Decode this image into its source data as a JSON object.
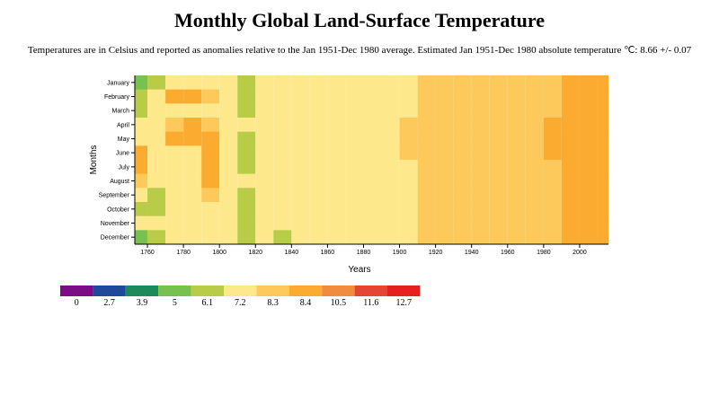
{
  "title": "Monthly Global Land-Surface Temperature",
  "subtitle": "Temperatures are in Celsius and reported as anomalies relative to the Jan 1951-Dec 1980 average. Estimated Jan 1951-Dec 1980 absolute temperature ℃: 8.66 +/- 0.07",
  "chart_data": {
    "type": "heatmap",
    "xlabel": "Years",
    "ylabel": "Months",
    "xlim": [
      1753,
      2015
    ],
    "x_ticks": [
      "1760",
      "1780",
      "1800",
      "1820",
      "1840",
      "1860",
      "1880",
      "1900",
      "1920",
      "1940",
      "1960",
      "1980",
      "2000"
    ],
    "months": [
      "January",
      "February",
      "March",
      "April",
      "May",
      "June",
      "July",
      "August",
      "September",
      "October",
      "November",
      "December"
    ],
    "decades": [
      1750,
      1760,
      1770,
      1780,
      1790,
      1800,
      1810,
      1820,
      1830,
      1840,
      1850,
      1860,
      1870,
      1880,
      1890,
      1900,
      1910,
      1920,
      1930,
      1940,
      1950,
      1960,
      1970,
      1980,
      1990,
      2000,
      2010
    ],
    "values_by_month_decade_approx": [
      [
        6.0,
        7.0,
        8.0,
        7.6,
        8.2,
        7.9,
        6.8,
        7.5,
        7.2,
        7.5,
        7.8,
        7.7,
        7.9,
        7.6,
        7.9,
        8.2,
        8.3,
        8.35,
        8.36,
        8.37,
        8.35,
        8.34,
        8.36,
        8.38,
        8.6,
        8.9,
        9.0
      ],
      [
        6.5,
        7.3,
        8.5,
        8.6,
        8.3,
        8.0,
        6.9,
        7.6,
        7.3,
        7.6,
        7.7,
        7.7,
        7.8,
        7.7,
        7.8,
        8.2,
        8.3,
        8.35,
        8.37,
        8.36,
        8.35,
        8.35,
        8.36,
        8.38,
        8.6,
        9.0,
        9.1
      ],
      [
        7.0,
        7.5,
        8.0,
        8.0,
        8.2,
        7.9,
        7.0,
        7.6,
        7.4,
        7.6,
        7.8,
        7.7,
        7.9,
        7.7,
        7.9,
        8.1,
        8.3,
        8.35,
        8.36,
        8.37,
        8.36,
        8.35,
        8.36,
        8.39,
        8.7,
        9.1,
        9.2
      ],
      [
        7.5,
        8.0,
        8.3,
        9.0,
        8.3,
        8.1,
        7.2,
        7.7,
        7.4,
        7.6,
        7.9,
        7.8,
        8.0,
        7.8,
        8.0,
        8.3,
        8.35,
        8.36,
        8.37,
        8.37,
        8.36,
        8.35,
        8.37,
        8.4,
        8.8,
        9.2,
        9.3
      ],
      [
        7.8,
        7.6,
        8.5,
        9.5,
        8.4,
        8.0,
        6.8,
        7.7,
        7.3,
        7.7,
        7.8,
        7.8,
        7.9,
        7.8,
        7.9,
        8.3,
        8.35,
        8.36,
        8.37,
        8.38,
        8.36,
        8.35,
        8.37,
        8.4,
        8.7,
        9.1,
        9.2
      ],
      [
        8.5,
        7.8,
        8.0,
        8.2,
        8.4,
        8.1,
        7.0,
        7.6,
        7.4,
        7.7,
        7.9,
        7.8,
        8.0,
        7.8,
        8.0,
        8.3,
        8.35,
        8.37,
        8.37,
        8.38,
        8.36,
        8.36,
        8.37,
        8.4,
        8.7,
        9.0,
        9.1
      ],
      [
        8.8,
        7.6,
        8.1,
        8.1,
        8.4,
        8.0,
        7.1,
        7.5,
        7.5,
        7.6,
        7.8,
        7.9,
        7.9,
        7.8,
        8.0,
        8.2,
        8.35,
        8.36,
        8.37,
        8.37,
        8.36,
        8.35,
        8.37,
        8.39,
        8.6,
        8.9,
        9.1
      ],
      [
        8.3,
        7.8,
        8.2,
        8.2,
        8.5,
        8.1,
        7.2,
        7.6,
        7.5,
        7.7,
        7.8,
        7.8,
        7.9,
        7.7,
        7.9,
        8.2,
        8.3,
        8.36,
        8.37,
        8.37,
        8.36,
        8.35,
        8.37,
        8.39,
        8.7,
        9.0,
        9.2
      ],
      [
        7.6,
        7.0,
        7.9,
        8.0,
        8.3,
        7.9,
        7.0,
        7.6,
        7.3,
        7.6,
        7.8,
        7.7,
        7.9,
        7.7,
        7.9,
        8.2,
        8.3,
        8.36,
        8.36,
        8.37,
        8.36,
        8.35,
        8.36,
        8.38,
        8.6,
        9.0,
        9.2
      ],
      [
        6.5,
        6.8,
        7.8,
        7.9,
        8.2,
        7.9,
        6.8,
        7.5,
        7.3,
        7.5,
        7.7,
        7.7,
        7.8,
        7.7,
        7.8,
        8.2,
        8.3,
        8.35,
        8.36,
        8.36,
        8.35,
        8.35,
        8.36,
        8.38,
        8.6,
        9.1,
        9.2
      ],
      [
        7.2,
        7.2,
        7.6,
        7.8,
        8.1,
        7.8,
        6.9,
        7.4,
        7.2,
        7.5,
        7.7,
        7.6,
        7.8,
        7.6,
        7.8,
        8.1,
        8.3,
        8.35,
        8.36,
        8.36,
        8.35,
        8.34,
        8.36,
        8.38,
        8.6,
        9.0,
        9.1
      ],
      [
        5.5,
        6.5,
        7.4,
        7.7,
        8.0,
        7.7,
        6.7,
        7.3,
        7.1,
        7.4,
        7.6,
        7.6,
        7.7,
        7.6,
        7.7,
        8.1,
        8.3,
        8.34,
        8.35,
        8.36,
        8.35,
        8.34,
        8.35,
        8.37,
        8.6,
        8.9,
        9.0
      ]
    ],
    "legend": {
      "thresholds": [
        "0",
        "2.7",
        "3.9",
        "5",
        "6.1",
        "7.2",
        "8.3",
        "8.4",
        "10.5",
        "11.6",
        "12.7"
      ],
      "lower_bounds": [
        0,
        2.7,
        3.9,
        5,
        6.1,
        7.2,
        8.3,
        8.4,
        10.5,
        11.6,
        12.7
      ],
      "colors": [
        "#7b0d86",
        "#1f4a9c",
        "#1c8a5c",
        "#77c14e",
        "#b8cc47",
        "#fde98c",
        "#fcc95a",
        "#fbac30",
        "#f18b3d",
        "#e64534",
        "#e6201f"
      ]
    }
  }
}
